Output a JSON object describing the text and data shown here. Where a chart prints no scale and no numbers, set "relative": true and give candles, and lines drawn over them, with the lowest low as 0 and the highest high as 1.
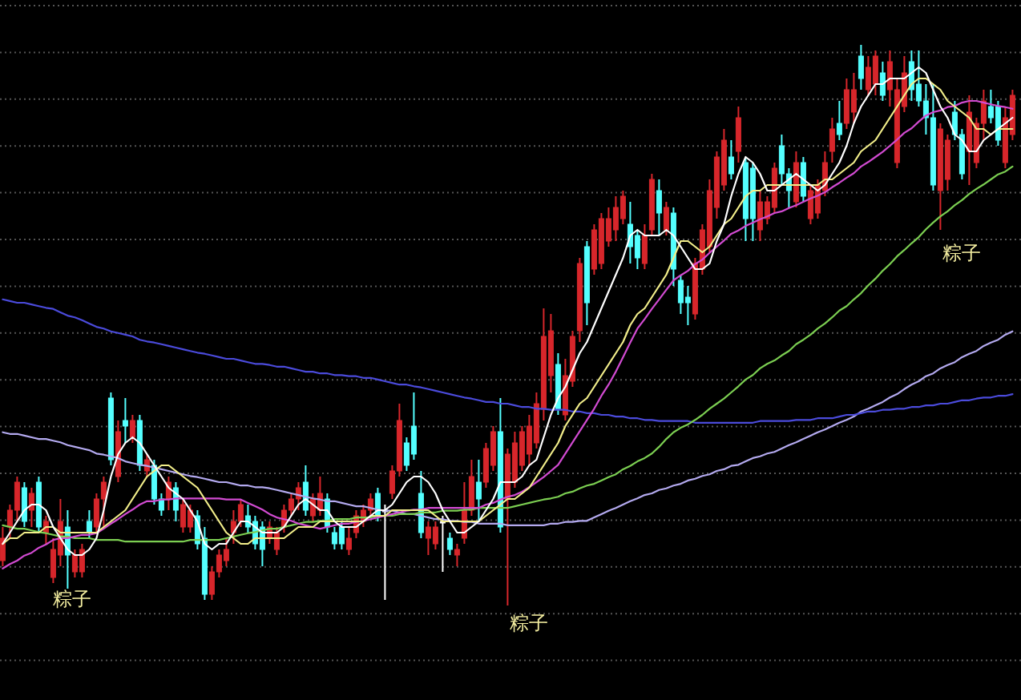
{
  "chart_data": {
    "type": "candlestick",
    "relative": true,
    "grid": "y",
    "categories": [
      null,
      null,
      null,
      null,
      null,
      null,
      null,
      null,
      null,
      null,
      null,
      null,
      null,
      null,
      null,
      null,
      null,
      null,
      null,
      null,
      null,
      null,
      null,
      null,
      null,
      null,
      null,
      null,
      null,
      null,
      null,
      null,
      null,
      null,
      null,
      null,
      null,
      null,
      null,
      null,
      null,
      null,
      null,
      null,
      null,
      null,
      null,
      null,
      null,
      null,
      null,
      null,
      null,
      null,
      null,
      null,
      null,
      null,
      null,
      null,
      null,
      null,
      null,
      null,
      null,
      null,
      null,
      null,
      null,
      null,
      null,
      null,
      null,
      null,
      null,
      null,
      null,
      null,
      null,
      null,
      null,
      null,
      null,
      null,
      null,
      null,
      null,
      null,
      null,
      null,
      null,
      null,
      null,
      null,
      null,
      null,
      null,
      null,
      null,
      null,
      null,
      null,
      null,
      null,
      null,
      null,
      null,
      null,
      null,
      null,
      null,
      null,
      null,
      null,
      null,
      null,
      null,
      null,
      null,
      null,
      null,
      null,
      null,
      null,
      null,
      null,
      null,
      null,
      null,
      null,
      null,
      null,
      null,
      null,
      null,
      null,
      null,
      null,
      null,
      null,
      null
    ],
    "ohlc": [
      [
        0.08,
        0.14,
        0.07,
        0.12
      ],
      [
        0.14,
        0.18,
        0.12,
        0.17
      ],
      [
        0.17,
        0.23,
        0.15,
        0.22
      ],
      [
        0.21,
        0.22,
        0.14,
        0.15
      ],
      [
        0.17,
        0.21,
        0.14,
        0.2
      ],
      [
        0.22,
        0.23,
        0.13,
        0.14
      ],
      [
        0.13,
        0.16,
        0.11,
        0.15
      ],
      [
        0.05,
        0.12,
        0.04,
        0.1
      ],
      [
        0.09,
        0.19,
        0.07,
        0.15
      ],
      [
        0.14,
        0.17,
        0.03,
        0.09
      ],
      [
        0.06,
        0.1,
        0.05,
        0.09
      ],
      [
        0.06,
        0.11,
        0.05,
        0.1
      ],
      [
        0.15,
        0.17,
        0.12,
        0.13
      ],
      [
        0.14,
        0.2,
        0.13,
        0.19
      ],
      [
        0.19,
        0.23,
        0.14,
        0.22
      ],
      [
        0.37,
        0.38,
        0.25,
        0.26
      ],
      [
        0.23,
        0.33,
        0.22,
        0.31
      ],
      [
        0.33,
        0.37,
        0.29,
        0.32
      ],
      [
        0.3,
        0.34,
        0.29,
        0.33
      ],
      [
        0.33,
        0.34,
        0.24,
        0.25
      ],
      [
        0.24,
        0.27,
        0.23,
        0.26
      ],
      [
        0.25,
        0.26,
        0.18,
        0.19
      ],
      [
        0.19,
        0.2,
        0.16,
        0.17
      ],
      [
        0.19,
        0.23,
        0.17,
        0.22
      ],
      [
        0.21,
        0.22,
        0.15,
        0.17
      ],
      [
        0.14,
        0.19,
        0.13,
        0.18
      ],
      [
        0.14,
        0.18,
        0.13,
        0.17
      ],
      [
        0.16,
        0.17,
        0.1,
        0.11
      ],
      [
        0.12,
        0.14,
        0.01,
        0.02
      ],
      [
        0.02,
        0.07,
        0.01,
        0.06
      ],
      [
        0.06,
        0.1,
        0.05,
        0.09
      ],
      [
        0.08,
        0.12,
        0.07,
        0.1
      ],
      [
        0.13,
        0.17,
        0.11,
        0.15
      ],
      [
        0.15,
        0.19,
        0.14,
        0.18
      ],
      [
        0.16,
        0.18,
        0.13,
        0.14
      ],
      [
        0.15,
        0.16,
        0.1,
        0.11
      ],
      [
        0.14,
        0.15,
        0.07,
        0.1
      ],
      [
        0.12,
        0.15,
        0.11,
        0.14
      ],
      [
        0.1,
        0.14,
        0.09,
        0.13
      ],
      [
        0.14,
        0.18,
        0.13,
        0.17
      ],
      [
        0.17,
        0.2,
        0.16,
        0.19
      ],
      [
        0.19,
        0.22,
        0.17,
        0.21
      ],
      [
        0.22,
        0.25,
        0.16,
        0.17
      ],
      [
        0.16,
        0.2,
        0.15,
        0.19
      ],
      [
        0.17,
        0.23,
        0.16,
        0.2
      ],
      [
        0.19,
        0.2,
        0.13,
        0.14
      ],
      [
        0.13,
        0.14,
        0.1,
        0.11
      ],
      [
        0.14,
        0.15,
        0.1,
        0.11
      ],
      [
        0.1,
        0.14,
        0.09,
        0.12
      ],
      [
        0.13,
        0.17,
        0.12,
        0.16
      ],
      [
        0.15,
        0.18,
        0.14,
        0.17
      ],
      [
        0.17,
        0.2,
        0.16,
        0.19
      ],
      [
        0.2,
        0.21,
        0.15,
        0.16
      ],
      [
        0.17,
        0.18,
        0.01,
        0.17
      ],
      [
        0.2,
        0.25,
        0.19,
        0.24
      ],
      [
        0.24,
        0.36,
        0.23,
        0.33
      ],
      [
        0.29,
        0.3,
        0.24,
        0.25
      ],
      [
        0.32,
        0.38,
        0.26,
        0.27
      ],
      [
        0.2,
        0.24,
        0.12,
        0.13
      ],
      [
        0.12,
        0.15,
        0.09,
        0.14
      ],
      [
        0.11,
        0.15,
        0.1,
        0.14
      ],
      [
        0.15,
        0.16,
        0.06,
        0.15
      ],
      [
        0.12,
        0.13,
        0.09,
        0.1
      ],
      [
        0.09,
        0.11,
        0.07,
        0.1
      ],
      [
        0.12,
        0.22,
        0.11,
        0.17
      ],
      [
        0.17,
        0.26,
        0.16,
        0.23
      ],
      [
        0.22,
        0.26,
        0.15,
        0.19
      ],
      [
        0.22,
        0.29,
        0.21,
        0.28
      ],
      [
        0.25,
        0.32,
        0.24,
        0.31
      ],
      [
        0.31,
        0.37,
        0.13,
        0.14
      ],
      [
        0.19,
        0.28,
        0,
        0.27
      ],
      [
        0.22,
        0.31,
        0.21,
        0.29
      ],
      [
        0.25,
        0.32,
        0.24,
        0.31
      ],
      [
        0.27,
        0.34,
        0.25,
        0.32
      ],
      [
        0.29,
        0.38,
        0.28,
        0.36
      ],
      [
        0.35,
        0.53,
        0.33,
        0.48
      ],
      [
        0.41,
        0.52,
        0.38,
        0.49
      ],
      [
        0.43,
        0.45,
        0.34,
        0.35
      ],
      [
        0.34,
        0.44,
        0.33,
        0.41
      ],
      [
        0.4,
        0.49,
        0.39,
        0.48
      ],
      [
        0.49,
        0.62,
        0.47,
        0.61
      ],
      [
        0.64,
        0.65,
        0.5,
        0.54
      ],
      [
        0.6,
        0.68,
        0.59,
        0.67
      ],
      [
        0.61,
        0.7,
        0.6,
        0.69
      ],
      [
        0.65,
        0.71,
        0.64,
        0.69
      ],
      [
        0.67,
        0.73,
        0.65,
        0.71
      ],
      [
        0.69,
        0.74,
        0.68,
        0.73
      ],
      [
        0.68,
        0.72,
        0.61,
        0.64
      ],
      [
        0.66,
        0.67,
        0.6,
        0.62
      ],
      [
        0.61,
        0.68,
        0.6,
        0.66
      ],
      [
        0.67,
        0.77,
        0.66,
        0.76
      ],
      [
        0.74,
        0.76,
        0.66,
        0.7
      ],
      [
        0.67,
        0.72,
        0.66,
        0.71
      ],
      [
        0.7,
        0.71,
        0.57,
        0.6
      ],
      [
        0.58,
        0.59,
        0.52,
        0.54
      ],
      [
        0.55,
        0.57,
        0.5,
        0.54
      ],
      [
        0.52,
        0.62,
        0.51,
        0.61
      ],
      [
        0.6,
        0.68,
        0.59,
        0.67
      ],
      [
        0.64,
        0.76,
        0.63,
        0.74
      ],
      [
        0.71,
        0.81,
        0.69,
        0.8
      ],
      [
        0.75,
        0.85,
        0.74,
        0.83
      ],
      [
        0.8,
        0.83,
        0.76,
        0.77
      ],
      [
        0.81,
        0.89,
        0.79,
        0.87
      ],
      [
        0.79,
        0.8,
        0.65,
        0.69
      ],
      [
        0.78,
        0.79,
        0.65,
        0.69
      ],
      [
        0.67,
        0.74,
        0.65,
        0.72
      ],
      [
        0.69,
        0.73,
        0.68,
        0.72
      ],
      [
        0.71,
        0.79,
        0.7,
        0.78
      ],
      [
        0.82,
        0.84,
        0.75,
        0.77
      ],
      [
        0.77,
        0.78,
        0.71,
        0.74
      ],
      [
        0.72,
        0.81,
        0.71,
        0.79
      ],
      [
        0.79,
        0.8,
        0.72,
        0.73
      ],
      [
        0.69,
        0.75,
        0.68,
        0.74
      ],
      [
        0.7,
        0.76,
        0.69,
        0.75
      ],
      [
        0.74,
        0.81,
        0.73,
        0.79
      ],
      [
        0.81,
        0.87,
        0.79,
        0.85
      ],
      [
        0.86,
        0.9,
        0.83,
        0.84
      ],
      [
        0.86,
        0.94,
        0.85,
        0.92
      ],
      [
        0.88,
        0.95,
        0.86,
        0.92
      ],
      [
        0.98,
        1,
        0.92,
        0.94
      ],
      [
        0.92,
        0.98,
        0.91,
        0.96
      ],
      [
        0.93,
        0.99,
        0.91,
        0.98
      ],
      [
        0.95,
        0.97,
        0.9,
        0.91
      ],
      [
        0.92,
        0.99,
        0.89,
        0.97
      ],
      [
        0.79,
        0.94,
        0.78,
        0.92
      ],
      [
        0.89,
        0.98,
        0.88,
        0.95
      ],
      [
        0.97,
        0.99,
        0.9,
        0.92
      ],
      [
        0.93,
        0.99,
        0.89,
        0.9
      ],
      [
        0.9,
        0.93,
        0.84,
        0.87
      ],
      [
        0.87,
        0.93,
        0.74,
        0.75
      ],
      [
        0.74,
        0.86,
        0.67,
        0.85
      ],
      [
        0.76,
        0.84,
        0.74,
        0.83
      ],
      [
        0.88,
        0.9,
        0.83,
        0.84
      ],
      [
        0.84,
        0.85,
        0.76,
        0.77
      ],
      [
        0.81,
        0.91,
        0.75,
        0.88
      ],
      [
        0.79,
        0.87,
        0.78,
        0.86
      ],
      [
        0.86,
        0.92,
        0.83,
        0.9
      ],
      [
        0.89,
        0.92,
        0.86,
        0.87
      ],
      [
        0.89,
        0.9,
        0.82,
        0.83
      ],
      [
        0.79,
        0.89,
        0.78,
        0.87
      ],
      [
        0.84,
        0.92,
        0.83,
        0.91
      ]
    ],
    "colors": [
      "#d7262b",
      "#d7262b",
      "#d7262b",
      "#54ffff",
      "#d7262b",
      "#54ffff",
      "#d7262b",
      "#d7262b",
      "#d7262b",
      "#54ffff",
      "#d7262b",
      "#d7262b",
      "#54ffff",
      "#d7262b",
      "#d7262b",
      "#54ffff",
      "#d7262b",
      "#54ffff",
      "#d7262b",
      "#54ffff",
      "#d7262b",
      "#54ffff",
      "#54ffff",
      "#d7262b",
      "#54ffff",
      "#d7262b",
      "#d7262b",
      "#54ffff",
      "#54ffff",
      "#d7262b",
      "#d7262b",
      "#d7262b",
      "#d7262b",
      "#d7262b",
      "#54ffff",
      "#54ffff",
      "#54ffff",
      "#d7262b",
      "#d7262b",
      "#d7262b",
      "#d7262b",
      "#d7262b",
      "#54ffff",
      "#d7262b",
      "#d7262b",
      "#54ffff",
      "#54ffff",
      "#54ffff",
      "#d7262b",
      "#d7262b",
      "#d7262b",
      "#d7262b",
      "#54ffff",
      "#ffffff",
      "#d7262b",
      "#d7262b",
      "#54ffff",
      "#54ffff",
      "#54ffff",
      "#d7262b",
      "#d7262b",
      "#ffffff",
      "#54ffff",
      "#d7262b",
      "#d7262b",
      "#d7262b",
      "#54ffff",
      "#d7262b",
      "#d7262b",
      "#54ffff",
      "#d7262b",
      "#d7262b",
      "#d7262b",
      "#d7262b",
      "#d7262b",
      "#d7262b",
      "#d7262b",
      "#54ffff",
      "#d7262b",
      "#d7262b",
      "#d7262b",
      "#54ffff",
      "#d7262b",
      "#d7262b",
      "#d7262b",
      "#d7262b",
      "#d7262b",
      "#54ffff",
      "#54ffff",
      "#d7262b",
      "#d7262b",
      "#54ffff",
      "#d7262b",
      "#54ffff",
      "#54ffff",
      "#54ffff",
      "#d7262b",
      "#d7262b",
      "#d7262b",
      "#d7262b",
      "#d7262b",
      "#54ffff",
      "#d7262b",
      "#54ffff",
      "#54ffff",
      "#d7262b",
      "#d7262b",
      "#d7262b",
      "#54ffff",
      "#54ffff",
      "#d7262b",
      "#54ffff",
      "#d7262b",
      "#d7262b",
      "#d7262b",
      "#d7262b",
      "#54ffff",
      "#d7262b",
      "#d7262b",
      "#54ffff",
      "#d7262b",
      "#d7262b",
      "#54ffff",
      "#d7262b",
      "#d7262b",
      "#d7262b",
      "#54ffff",
      "#54ffff",
      "#54ffff",
      "#54ffff",
      "#d7262b",
      "#d7262b",
      "#54ffff",
      "#54ffff",
      "#d7262b",
      "#d7262b",
      "#d7262b",
      "#54ffff",
      "#54ffff",
      "#d7262b",
      "#d7262b"
    ],
    "series": [
      {
        "type": "line",
        "color": "#b4aaf0",
        "values": [
          0.309,
          0.306,
          0.306,
          0.303,
          0.3,
          0.297,
          0.297,
          0.294,
          0.291,
          0.286,
          0.283,
          0.28,
          0.277,
          0.271,
          0.269,
          0.266,
          0.263,
          0.257,
          0.254,
          0.251,
          0.249,
          0.246,
          0.243,
          0.24,
          0.237,
          0.234,
          0.231,
          0.229,
          0.226,
          0.223,
          0.22,
          0.22,
          0.217,
          0.214,
          0.214,
          0.211,
          0.211,
          0.209,
          0.206,
          0.203,
          0.2,
          0.197,
          0.194,
          0.191,
          0.189,
          0.186,
          0.186,
          0.183,
          0.18,
          0.177,
          0.177,
          0.174,
          0.171,
          0.169,
          0.169,
          0.166,
          0.163,
          0.163,
          0.16,
          0.157,
          0.154,
          0.154,
          0.151,
          0.151,
          0.149,
          0.149,
          0.146,
          0.146,
          0.146,
          0.146,
          0.143,
          0.143,
          0.143,
          0.143,
          0.143,
          0.143,
          0.146,
          0.146,
          0.149,
          0.149,
          0.151,
          0.151,
          0.157,
          0.163,
          0.169,
          0.174,
          0.18,
          0.186,
          0.191,
          0.197,
          0.2,
          0.206,
          0.209,
          0.214,
          0.217,
          0.223,
          0.226,
          0.231,
          0.234,
          0.24,
          0.243,
          0.249,
          0.251,
          0.257,
          0.263,
          0.266,
          0.271,
          0.274,
          0.28,
          0.286,
          0.291,
          0.297,
          0.303,
          0.309,
          0.314,
          0.32,
          0.326,
          0.331,
          0.337,
          0.346,
          0.351,
          0.357,
          0.363,
          0.371,
          0.377,
          0.386,
          0.394,
          0.4,
          0.409,
          0.414,
          0.423,
          0.429,
          0.434,
          0.443,
          0.449,
          0.454,
          0.463,
          0.469,
          0.474,
          0.483,
          0.489
        ]
      },
      {
        "type": "line",
        "color": "#4b4bdc",
        "values": [
          0.546,
          0.543,
          0.54,
          0.54,
          0.537,
          0.534,
          0.531,
          0.529,
          0.523,
          0.517,
          0.514,
          0.509,
          0.503,
          0.497,
          0.494,
          0.489,
          0.486,
          0.483,
          0.48,
          0.474,
          0.471,
          0.469,
          0.466,
          0.463,
          0.46,
          0.457,
          0.454,
          0.451,
          0.449,
          0.446,
          0.443,
          0.44,
          0.44,
          0.437,
          0.434,
          0.431,
          0.431,
          0.429,
          0.426,
          0.426,
          0.423,
          0.42,
          0.417,
          0.417,
          0.414,
          0.414,
          0.411,
          0.411,
          0.409,
          0.409,
          0.406,
          0.406,
          0.403,
          0.4,
          0.397,
          0.394,
          0.394,
          0.391,
          0.389,
          0.386,
          0.383,
          0.38,
          0.377,
          0.374,
          0.371,
          0.369,
          0.366,
          0.363,
          0.363,
          0.36,
          0.36,
          0.357,
          0.354,
          0.354,
          0.351,
          0.351,
          0.349,
          0.349,
          0.349,
          0.346,
          0.346,
          0.343,
          0.343,
          0.34,
          0.34,
          0.337,
          0.337,
          0.334,
          0.334,
          0.331,
          0.331,
          0.329,
          0.329,
          0.329,
          0.329,
          0.329,
          0.326,
          0.326,
          0.326,
          0.326,
          0.326,
          0.326,
          0.326,
          0.326,
          0.326,
          0.329,
          0.329,
          0.329,
          0.329,
          0.329,
          0.331,
          0.331,
          0.331,
          0.334,
          0.334,
          0.334,
          0.337,
          0.34,
          0.34,
          0.343,
          0.346,
          0.346,
          0.349,
          0.349,
          0.351,
          0.351,
          0.354,
          0.354,
          0.357,
          0.357,
          0.36,
          0.36,
          0.363,
          0.366,
          0.366,
          0.369,
          0.371,
          0.371,
          0.374,
          0.374,
          0.377
        ]
      },
      {
        "type": "line",
        "color": "#7ccf52",
        "values": [
          0.143,
          0.14,
          0.137,
          0.137,
          0.134,
          0.131,
          0.129,
          0.126,
          0.123,
          0.123,
          0.12,
          0.12,
          0.12,
          0.117,
          0.117,
          0.117,
          0.117,
          0.114,
          0.114,
          0.114,
          0.114,
          0.114,
          0.114,
          0.114,
          0.114,
          0.114,
          0.117,
          0.117,
          0.117,
          0.117,
          0.117,
          0.12,
          0.123,
          0.126,
          0.129,
          0.131,
          0.134,
          0.137,
          0.137,
          0.14,
          0.143,
          0.146,
          0.149,
          0.149,
          0.151,
          0.151,
          0.154,
          0.154,
          0.154,
          0.157,
          0.157,
          0.157,
          0.16,
          0.16,
          0.16,
          0.163,
          0.163,
          0.163,
          0.166,
          0.166,
          0.166,
          0.169,
          0.169,
          0.169,
          0.171,
          0.171,
          0.174,
          0.174,
          0.174,
          0.174,
          0.174,
          0.177,
          0.18,
          0.183,
          0.186,
          0.189,
          0.191,
          0.194,
          0.2,
          0.203,
          0.209,
          0.214,
          0.217,
          0.223,
          0.229,
          0.234,
          0.243,
          0.249,
          0.257,
          0.263,
          0.271,
          0.283,
          0.297,
          0.309,
          0.317,
          0.323,
          0.331,
          0.34,
          0.351,
          0.36,
          0.369,
          0.38,
          0.391,
          0.403,
          0.411,
          0.423,
          0.431,
          0.437,
          0.446,
          0.454,
          0.466,
          0.474,
          0.483,
          0.494,
          0.503,
          0.514,
          0.526,
          0.534,
          0.546,
          0.557,
          0.571,
          0.583,
          0.597,
          0.609,
          0.623,
          0.634,
          0.646,
          0.657,
          0.671,
          0.683,
          0.694,
          0.703,
          0.714,
          0.723,
          0.734,
          0.743,
          0.751,
          0.76,
          0.769,
          0.774,
          0.783
        ]
      },
      {
        "type": "line",
        "color": "#d24bd2",
        "values": [
          0.066,
          0.074,
          0.08,
          0.089,
          0.094,
          0.103,
          0.109,
          0.117,
          0.12,
          0.12,
          0.123,
          0.126,
          0.126,
          0.129,
          0.137,
          0.146,
          0.154,
          0.163,
          0.171,
          0.18,
          0.186,
          0.186,
          0.189,
          0.189,
          0.191,
          0.191,
          0.191,
          0.191,
          0.191,
          0.191,
          0.191,
          0.189,
          0.189,
          0.189,
          0.183,
          0.177,
          0.171,
          0.163,
          0.157,
          0.154,
          0.151,
          0.146,
          0.143,
          0.14,
          0.137,
          0.14,
          0.143,
          0.146,
          0.146,
          0.149,
          0.151,
          0.154,
          0.157,
          0.16,
          0.163,
          0.166,
          0.169,
          0.171,
          0.171,
          0.174,
          0.174,
          0.174,
          0.174,
          0.174,
          0.174,
          0.174,
          0.174,
          0.18,
          0.183,
          0.189,
          0.194,
          0.197,
          0.203,
          0.211,
          0.22,
          0.229,
          0.24,
          0.251,
          0.271,
          0.291,
          0.311,
          0.331,
          0.351,
          0.374,
          0.394,
          0.417,
          0.443,
          0.469,
          0.494,
          0.511,
          0.529,
          0.546,
          0.563,
          0.58,
          0.589,
          0.597,
          0.609,
          0.617,
          0.629,
          0.64,
          0.651,
          0.663,
          0.669,
          0.677,
          0.683,
          0.689,
          0.694,
          0.7,
          0.703,
          0.709,
          0.714,
          0.72,
          0.726,
          0.731,
          0.737,
          0.746,
          0.754,
          0.763,
          0.771,
          0.783,
          0.791,
          0.8,
          0.809,
          0.82,
          0.831,
          0.843,
          0.851,
          0.863,
          0.874,
          0.88,
          0.883,
          0.889,
          0.891,
          0.897,
          0.9,
          0.9,
          0.897,
          0.894,
          0.891,
          0.889,
          0.886
        ]
      },
      {
        "type": "line",
        "color": "#f2ee8a",
        "values": [
          0.11,
          0.12,
          0.12,
          0.13,
          0.13,
          0.13,
          0.14,
          0.14,
          0.13,
          0.13,
          0.13,
          0.13,
          0.13,
          0.13,
          0.14,
          0.15,
          0.16,
          0.17,
          0.19,
          0.21,
          0.23,
          0.24,
          0.25,
          0.25,
          0.24,
          0.23,
          0.22,
          0.21,
          0.19,
          0.17,
          0.15,
          0.13,
          0.12,
          0.11,
          0.11,
          0.12,
          0.12,
          0.12,
          0.12,
          0.12,
          0.13,
          0.14,
          0.14,
          0.14,
          0.15,
          0.15,
          0.15,
          0.15,
          0.15,
          0.15,
          0.15,
          0.16,
          0.16,
          0.16,
          0.17,
          0.17,
          0.17,
          0.17,
          0.17,
          0.17,
          0.16,
          0.15,
          0.15,
          0.15,
          0.15,
          0.15,
          0.15,
          0.16,
          0.17,
          0.18,
          0.19,
          0.19,
          0.2,
          0.21,
          0.23,
          0.25,
          0.27,
          0.29,
          0.32,
          0.34,
          0.36,
          0.37,
          0.39,
          0.41,
          0.43,
          0.45,
          0.47,
          0.5,
          0.52,
          0.53,
          0.55,
          0.57,
          0.59,
          0.62,
          0.65,
          0.65,
          0.64,
          0.63,
          0.64,
          0.66,
          0.68,
          0.69,
          0.71,
          0.73,
          0.74,
          0.74,
          0.75,
          0.75,
          0.75,
          0.75,
          0.75,
          0.75,
          0.75,
          0.75,
          0.76,
          0.76,
          0.77,
          0.78,
          0.79,
          0.81,
          0.82,
          0.83,
          0.85,
          0.87,
          0.89,
          0.91,
          0.93,
          0.94,
          0.94,
          0.93,
          0.92,
          0.9,
          0.89,
          0.88,
          0.87,
          0.85,
          0.85,
          0.84,
          0.85,
          0.85,
          0.85
        ]
      },
      {
        "type": "line",
        "color": "#ffffff",
        "values": [
          0.11,
          0.13,
          0.15,
          0.17,
          0.18,
          0.18,
          0.17,
          0.14,
          0.12,
          0.1,
          0.09,
          0.09,
          0.1,
          0.12,
          0.17,
          0.23,
          0.27,
          0.29,
          0.3,
          0.29,
          0.27,
          0.25,
          0.23,
          0.21,
          0.2,
          0.19,
          0.17,
          0.15,
          0.11,
          0.1,
          0.11,
          0.11,
          0.13,
          0.15,
          0.15,
          0.14,
          0.13,
          0.13,
          0.13,
          0.14,
          0.16,
          0.18,
          0.19,
          0.18,
          0.17,
          0.17,
          0.15,
          0.14,
          0.14,
          0.14,
          0.15,
          0.16,
          0.17,
          0.17,
          0.18,
          0.2,
          0.22,
          0.23,
          0.23,
          0.22,
          0.2,
          0.17,
          0.15,
          0.13,
          0.13,
          0.14,
          0.15,
          0.17,
          0.19,
          0.22,
          0.22,
          0.22,
          0.23,
          0.25,
          0.26,
          0.3,
          0.34,
          0.37,
          0.39,
          0.42,
          0.45,
          0.47,
          0.5,
          0.53,
          0.56,
          0.59,
          0.62,
          0.66,
          0.67,
          0.66,
          0.66,
          0.66,
          0.67,
          0.66,
          0.64,
          0.62,
          0.6,
          0.6,
          0.61,
          0.65,
          0.68,
          0.73,
          0.77,
          0.8,
          0.79,
          0.77,
          0.74,
          0.74,
          0.75,
          0.76,
          0.77,
          0.76,
          0.75,
          0.74,
          0.75,
          0.77,
          0.79,
          0.82,
          0.86,
          0.89,
          0.91,
          0.93,
          0.93,
          0.94,
          0.94,
          0.94,
          0.95,
          0.96,
          0.95,
          0.92,
          0.89,
          0.87,
          0.84,
          0.83,
          0.81,
          0.81,
          0.83,
          0.84,
          0.85,
          0.86,
          0.87
        ]
      }
    ],
    "annotations": [
      "粽子",
      "粽子",
      "粽子"
    ]
  }
}
